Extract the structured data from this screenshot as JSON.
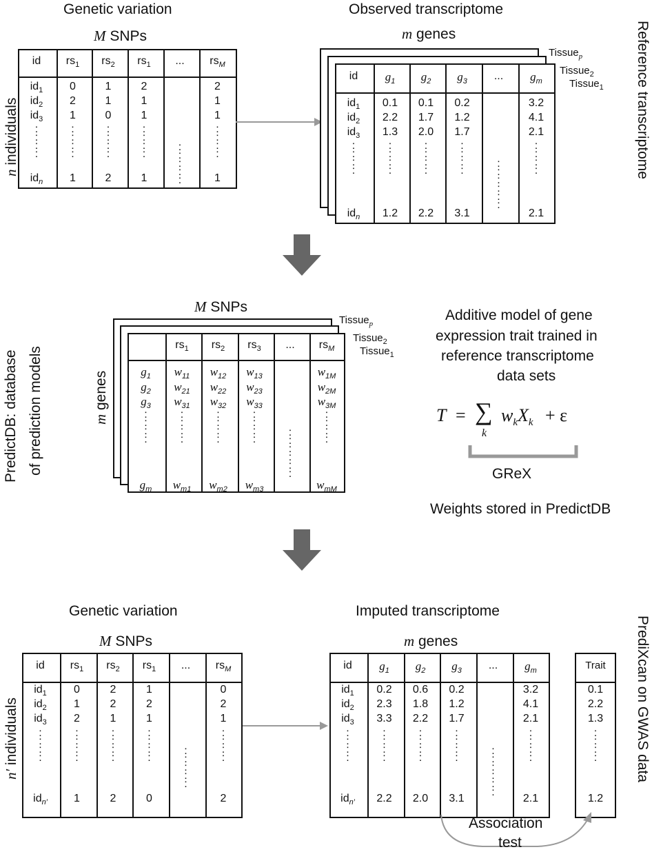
{
  "top": {
    "genetic_variation": "Genetic variation",
    "observed_transcriptome": "Observed transcriptome",
    "m_snps": "M SNPs",
    "m_genes": "m genes",
    "n_individuals": "n individuals",
    "reference_transcriptome": "Reference transcriptome",
    "snp_table": {
      "headers": [
        "id",
        "rs1",
        "rs2",
        "rs1",
        "...",
        "rsM"
      ],
      "rows": [
        [
          "id1",
          "0",
          "1",
          "2",
          "",
          "2"
        ],
        [
          "id2",
          "2",
          "1",
          "1",
          "",
          "1"
        ],
        [
          "id3",
          "1",
          "0",
          "1",
          "",
          "1"
        ],
        [
          "idn",
          "1",
          "2",
          "1",
          "",
          "1"
        ]
      ]
    },
    "expr_table": {
      "headers": [
        "id",
        "g1",
        "g2",
        "g3",
        "...",
        "gm"
      ],
      "rows": [
        [
          "id1",
          "0.1",
          "0.1",
          "0.2",
          "",
          "3.2"
        ],
        [
          "id2",
          "2.2",
          "1.7",
          "1.2",
          "",
          "4.1"
        ],
        [
          "id3",
          "1.3",
          "2.0",
          "1.7",
          "",
          "2.1"
        ],
        [
          "idn",
          "1.2",
          "2.2",
          "3.1",
          "",
          "2.1"
        ]
      ],
      "tissues": [
        "Tissuep",
        "Tissue2",
        "Tissue1"
      ]
    }
  },
  "middle": {
    "predictdb_label_1": "PredictDB: database",
    "predictdb_label_2": "of prediction models",
    "m_snps": "M SNPs",
    "m_genes": "m genes",
    "weight_table": {
      "headers": [
        "",
        "rs1",
        "rs2",
        "rs3",
        "...",
        "rsM"
      ],
      "rows": [
        [
          "g1",
          "w11",
          "w12",
          "w13",
          "",
          "w1M"
        ],
        [
          "g2",
          "w21",
          "w22",
          "w23",
          "",
          "w2M"
        ],
        [
          "g3",
          "w31",
          "w32",
          "w33",
          "",
          "w3M"
        ],
        [
          "gm",
          "wm1",
          "wm2",
          "wm3",
          "",
          "wmM"
        ]
      ],
      "tissues": [
        "Tissuep",
        "Tissue2",
        "Tissue1"
      ]
    },
    "model_text": [
      "Additive model of gene",
      "expression trait trained in",
      "reference transcriptome",
      "data sets"
    ],
    "grex": "GReX",
    "weights_stored": "Weights stored in PredictDB"
  },
  "bottom": {
    "genetic_variation": "Genetic variation",
    "imputed_transcriptome": "Imputed transcriptome",
    "m_snps": "M SNPs",
    "m_genes": "m genes",
    "n_individuals": "n′ individuals",
    "predixcan_label": "PrediXcan on GWAS data",
    "snp_table": {
      "headers": [
        "id",
        "rs1",
        "rs2",
        "rs1",
        "...",
        "rsM"
      ],
      "rows": [
        [
          "id1",
          "0",
          "2",
          "1",
          "",
          "0"
        ],
        [
          "id2",
          "1",
          "2",
          "2",
          "",
          "2"
        ],
        [
          "id3",
          "2",
          "1",
          "1",
          "",
          "1"
        ],
        [
          "idn′",
          "1",
          "2",
          "0",
          "",
          "2"
        ]
      ]
    },
    "expr_table": {
      "headers": [
        "id",
        "g1",
        "g2",
        "g3",
        "...",
        "gm"
      ],
      "rows": [
        [
          "id1",
          "0.2",
          "0.6",
          "0.2",
          "",
          "3.2"
        ],
        [
          "id2",
          "2.3",
          "1.8",
          "1.2",
          "",
          "4.1"
        ],
        [
          "id3",
          "3.3",
          "2.2",
          "1.7",
          "",
          "2.1"
        ],
        [
          "idn′",
          "2.2",
          "2.0",
          "3.1",
          "",
          "2.1"
        ]
      ]
    },
    "trait_table": {
      "header": "Trait",
      "values": [
        "0.1",
        "2.2",
        "1.3",
        "1.2"
      ]
    },
    "association_test": [
      "Association",
      "test"
    ]
  }
}
